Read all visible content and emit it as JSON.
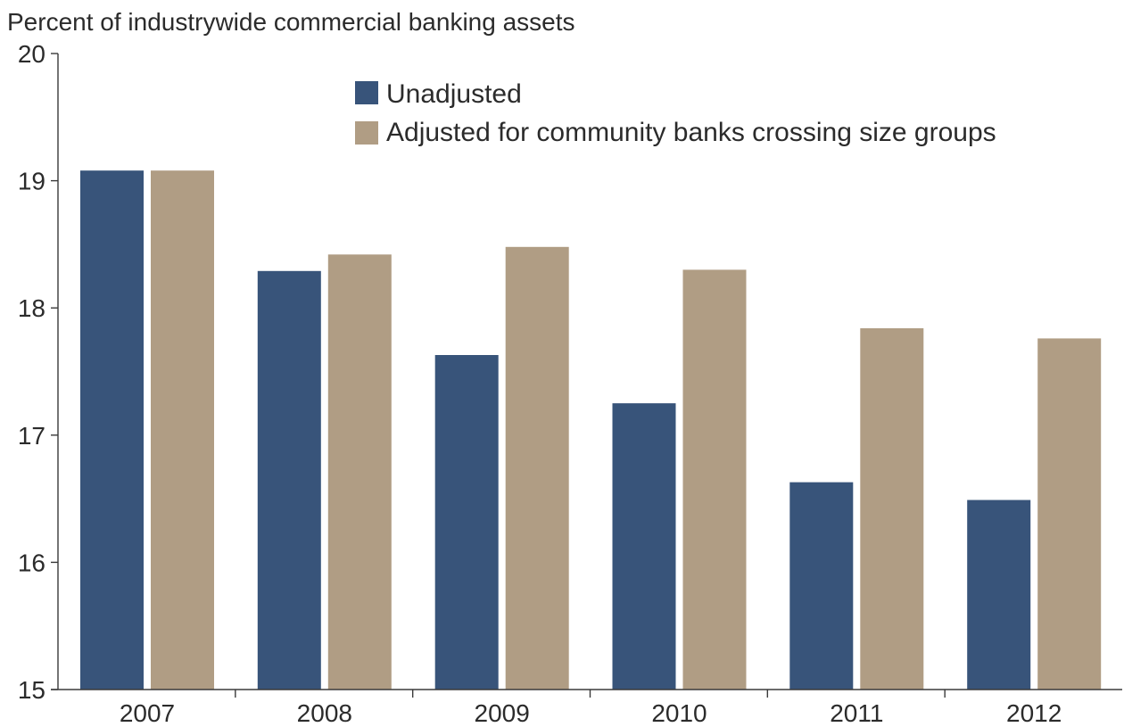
{
  "chart_data": {
    "type": "bar",
    "title": "",
    "ylabel": "Percent of industrywide commercial banking assets",
    "xlabel": "",
    "categories": [
      "2007",
      "2008",
      "2009",
      "2010",
      "2011",
      "2012"
    ],
    "series": [
      {
        "name": "Unadjusted",
        "color": "#38547a",
        "values": [
          19.08,
          18.29,
          17.63,
          17.25,
          16.63,
          16.49
        ]
      },
      {
        "name": "Adjusted for community banks crossing size groups",
        "color": "#b09d84",
        "values": [
          19.08,
          18.42,
          18.48,
          18.3,
          17.84,
          17.76
        ]
      }
    ],
    "ylim": [
      15,
      20
    ],
    "yticks": [
      "15",
      "16",
      "17",
      "18",
      "19",
      "20"
    ],
    "grid": false,
    "legend_position": "top-center"
  }
}
